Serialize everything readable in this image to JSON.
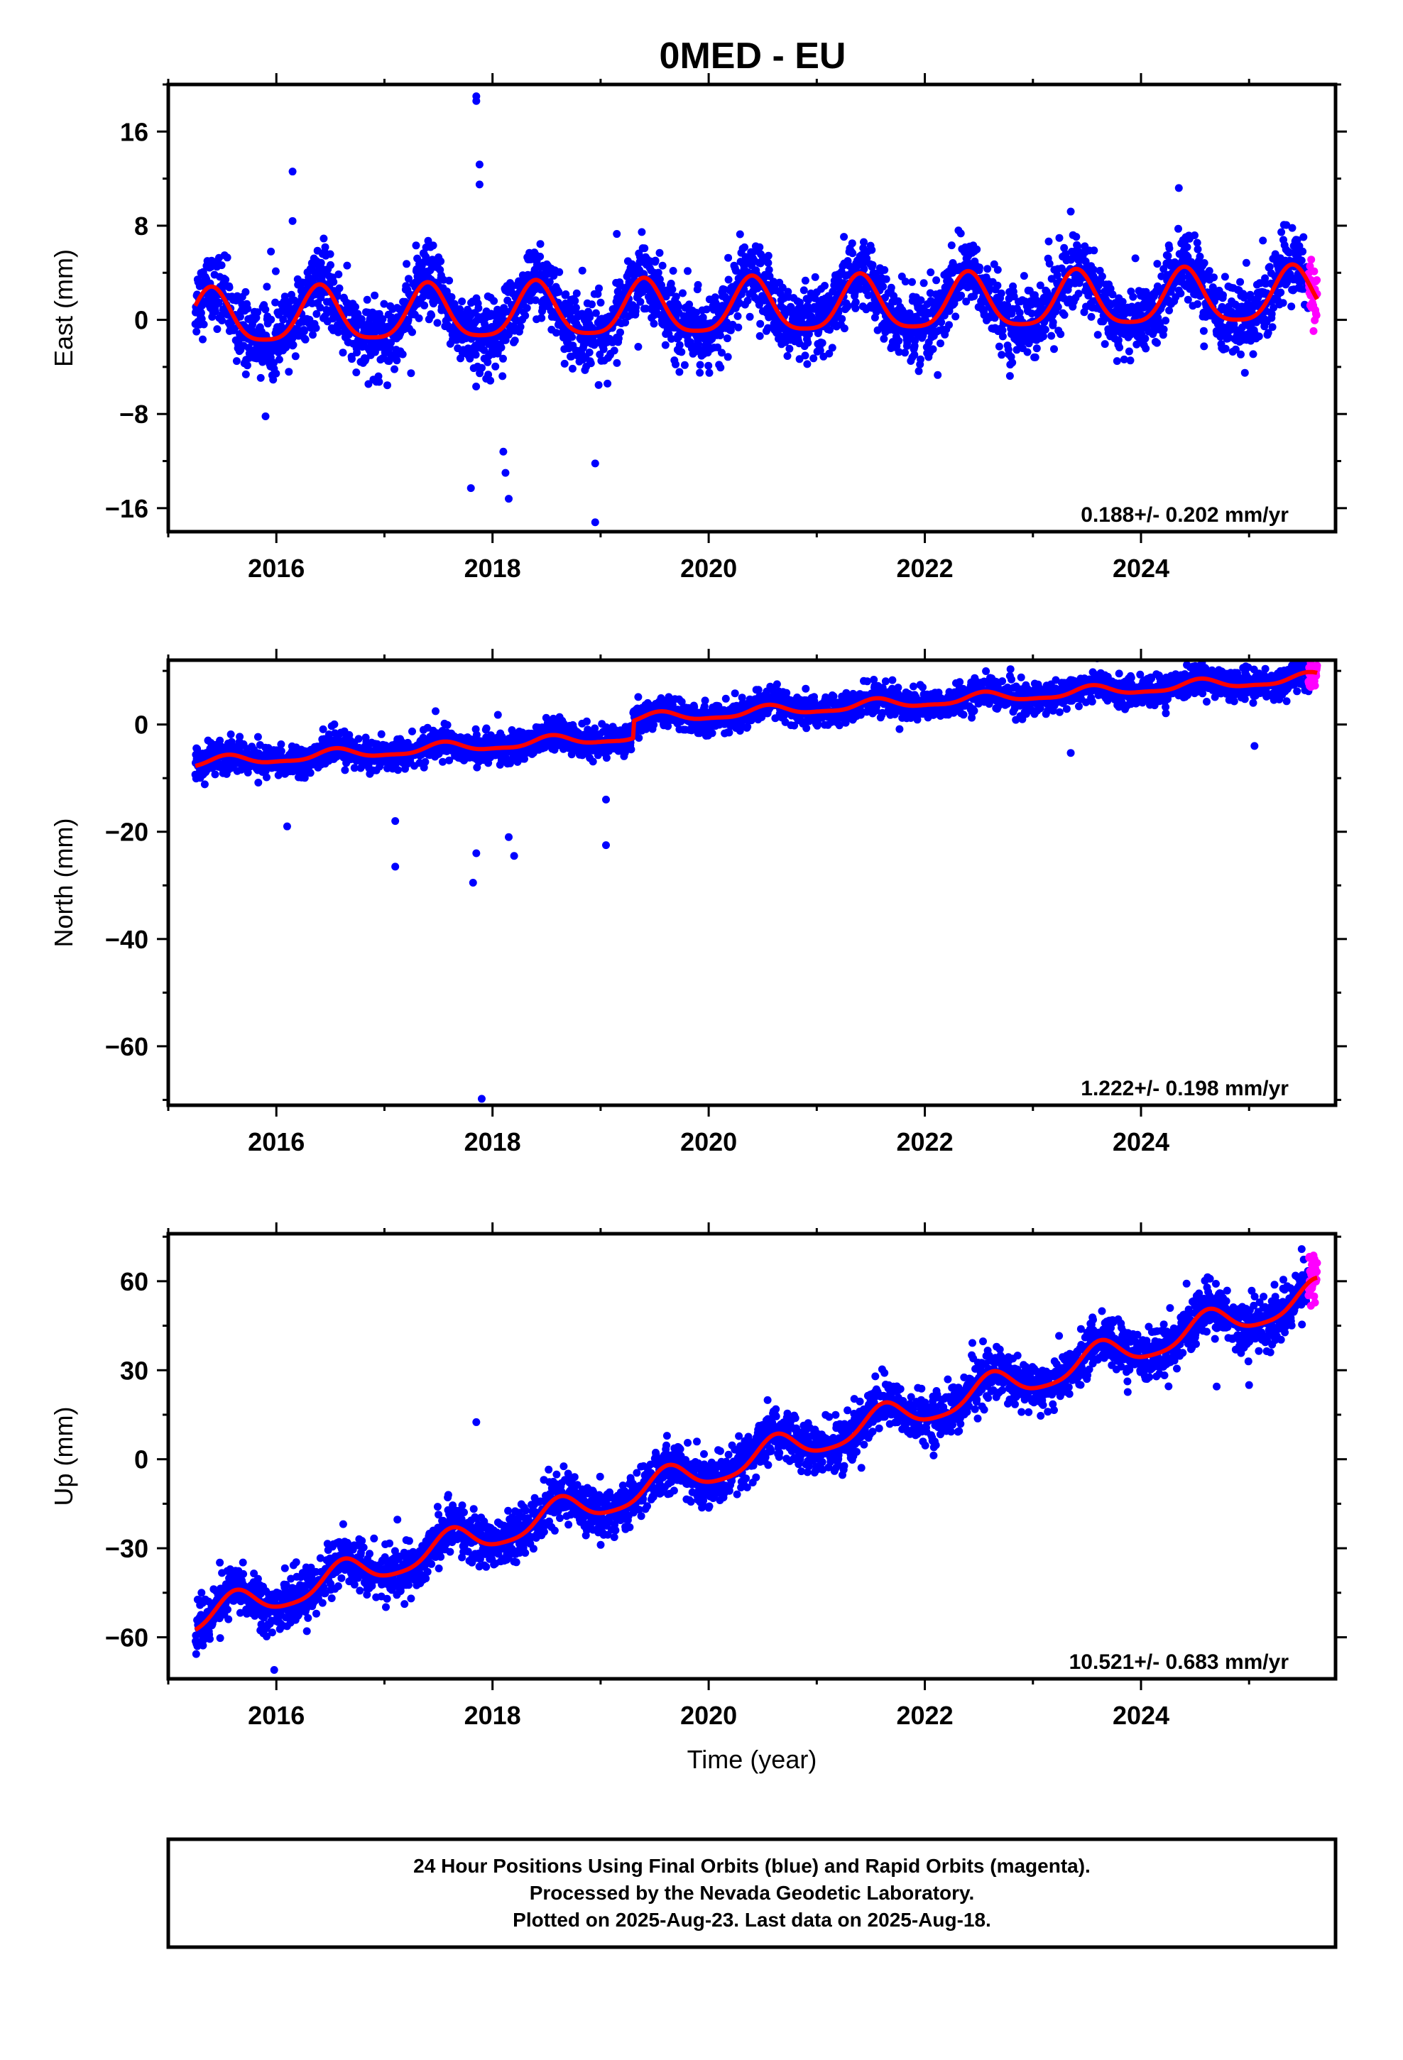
{
  "title": "0MED - EU",
  "chart_data": [
    {
      "type": "scatter",
      "component": "East",
      "ylabel": "East (mm)",
      "xlabel": "",
      "xlim": [
        2015.0,
        2025.8
      ],
      "ylim": [
        -18,
        20
      ],
      "yticks": [
        -16,
        -8,
        0,
        8,
        16
      ],
      "xticks": [
        2016,
        2018,
        2020,
        2022,
        2024
      ],
      "rate": "0.188+/- 0.202 mm/yr",
      "trend": 0.188,
      "seasonal": {
        "amp_annual": 2.3,
        "phase_peak": 0.4,
        "amp_semi": 0.5
      },
      "noise_sd": 1.5,
      "series": [
        {
          "name": "Final Orbits",
          "color": "#0000ff"
        },
        {
          "name": "Rapid Orbits",
          "color": "#ff00ff"
        },
        {
          "name": "Model fit",
          "color": "#ff0000"
        }
      ],
      "data_range": {
        "start": 2015.25,
        "end_final": 2025.55,
        "end_rapid": 2025.63
      },
      "offset_at_start": 0.0,
      "outliers": [
        {
          "x": 2015.95,
          "y": 5.8
        },
        {
          "x": 2016.15,
          "y": 12.6
        },
        {
          "x": 2016.15,
          "y": 8.4
        },
        {
          "x": 2015.9,
          "y": -8.2
        },
        {
          "x": 2017.85,
          "y": 19.0
        },
        {
          "x": 2017.85,
          "y": 18.6
        },
        {
          "x": 2017.88,
          "y": 13.2
        },
        {
          "x": 2017.88,
          "y": 11.5
        },
        {
          "x": 2017.8,
          "y": -14.3
        },
        {
          "x": 2018.1,
          "y": -11.2
        },
        {
          "x": 2018.12,
          "y": -13.0
        },
        {
          "x": 2018.15,
          "y": -15.2
        },
        {
          "x": 2018.95,
          "y": -12.2
        },
        {
          "x": 2018.95,
          "y": -17.2
        },
        {
          "x": 2019.15,
          "y": 7.3
        },
        {
          "x": 2024.35,
          "y": 11.2
        },
        {
          "x": 2023.35,
          "y": 9.2
        }
      ]
    },
    {
      "type": "scatter",
      "component": "North",
      "ylabel": "North (mm)",
      "xlabel": "",
      "xlim": [
        2015.0,
        2025.8
      ],
      "ylim": [
        -71,
        12
      ],
      "yticks": [
        -60,
        -40,
        -20,
        0
      ],
      "xticks": [
        2016,
        2018,
        2020,
        2022,
        2024
      ],
      "rate": "1.222+/- 0.198 mm/yr",
      "trend": 1.222,
      "seasonal": {
        "amp_annual": 0.9,
        "phase_peak": 0.55,
        "amp_semi": 0.3
      },
      "noise_sd": 1.4,
      "series": [
        {
          "name": "Final Orbits",
          "color": "#0000ff"
        },
        {
          "name": "Rapid Orbits",
          "color": "#ff00ff"
        },
        {
          "name": "Model fit",
          "color": "#ff0000"
        }
      ],
      "data_range": {
        "start": 2015.25,
        "end_final": 2025.55,
        "end_rapid": 2025.63
      },
      "offset_at_start": -7.2,
      "step": {
        "x": 2019.3,
        "dy": 3.2
      },
      "outliers": [
        {
          "x": 2017.9,
          "y": -69.8
        },
        {
          "x": 2017.82,
          "y": -29.5
        },
        {
          "x": 2017.85,
          "y": -24.0
        },
        {
          "x": 2017.1,
          "y": -26.5
        },
        {
          "x": 2017.1,
          "y": -18.0
        },
        {
          "x": 2016.1,
          "y": -19.0
        },
        {
          "x": 2018.15,
          "y": -21.0
        },
        {
          "x": 2018.2,
          "y": -24.5
        },
        {
          "x": 2019.05,
          "y": -22.5
        },
        {
          "x": 2019.05,
          "y": -14.0
        },
        {
          "x": 2023.35,
          "y": -5.3
        },
        {
          "x": 2025.05,
          "y": -4.0
        },
        {
          "x": 2018.05,
          "y": 1.8
        }
      ]
    },
    {
      "type": "scatter",
      "component": "Up",
      "ylabel": "Up (mm)",
      "xlabel": "Time (year)",
      "xlim": [
        2015.0,
        2025.8
      ],
      "ylim": [
        -74,
        76
      ],
      "yticks": [
        -60,
        -30,
        0,
        30,
        60
      ],
      "xticks": [
        2016,
        2018,
        2020,
        2022,
        2024
      ],
      "rate": "10.521+/- 0.683 mm/yr",
      "trend": 10.521,
      "seasonal": {
        "amp_annual": 5.0,
        "phase_peak": 0.62,
        "amp_semi": 1.0
      },
      "noise_sd": 4.2,
      "series": [
        {
          "name": "Final Orbits",
          "color": "#0000ff"
        },
        {
          "name": "Rapid Orbits",
          "color": "#ff00ff"
        },
        {
          "name": "Model fit",
          "color": "#ff0000"
        }
      ],
      "data_range": {
        "start": 2015.25,
        "end_final": 2025.55,
        "end_rapid": 2025.63
      },
      "offset_at_start": -54.0,
      "outliers": [
        {
          "x": 2017.85,
          "y": 12.5
        },
        {
          "x": 2015.98,
          "y": -71.0
        },
        {
          "x": 2025.0,
          "y": 25.0
        },
        {
          "x": 2024.7,
          "y": 24.5
        }
      ]
    }
  ],
  "footer": {
    "line1": "24 Hour Positions Using Final Orbits (blue) and Rapid Orbits (magenta).",
    "line2": "Processed by the Nevada Geodetic Laboratory.",
    "line3": "Plotted on 2025-Aug-23. Last data on 2025-Aug-18."
  }
}
